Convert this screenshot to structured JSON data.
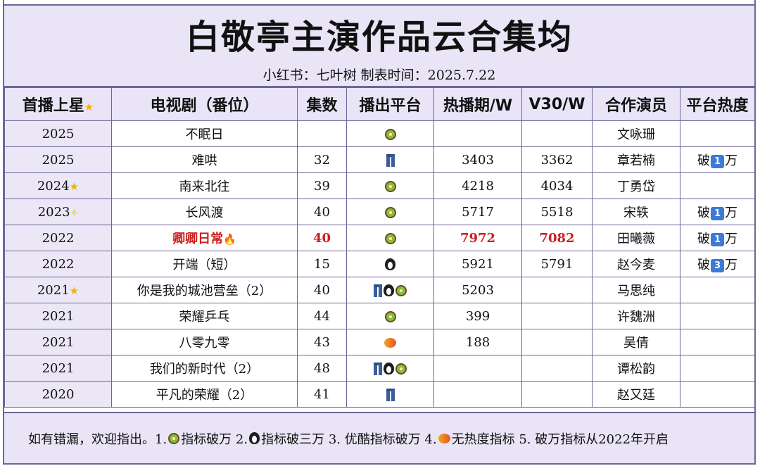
{
  "title": "白敬亭主演作品云合集均",
  "subtitle": "小红书：七叶树   制表时间：2025.7.22",
  "headers": [
    "首播上星",
    "电视剧（番位）",
    "集数",
    "播出平台",
    "热播期/W",
    "V30/W",
    "合作演员",
    "平台热度"
  ],
  "header_badge": "star-icon",
  "rows": [
    {
      "year": "2025",
      "year_badge": "",
      "drama": "不眠日",
      "episodes": "",
      "platforms": [
        "kiwi"
      ],
      "hot": "",
      "v30": "",
      "cast": "文咏珊",
      "heat_prefix": "",
      "heat_num": "",
      "heat_suffix": "",
      "highlight": false,
      "drama_badge": ""
    },
    {
      "year": "2025",
      "year_badge": "",
      "drama": "难哄",
      "episodes": "32",
      "platforms": [
        "jeans"
      ],
      "hot": "3403",
      "v30": "3362",
      "cast": "章若楠",
      "heat_prefix": "破",
      "heat_num": "1",
      "heat_suffix": "万",
      "highlight": false,
      "drama_badge": ""
    },
    {
      "year": "2024",
      "year_badge": "star",
      "drama": "南来北往",
      "episodes": "39",
      "platforms": [
        "kiwi"
      ],
      "hot": "4218",
      "v30": "4034",
      "cast": "丁勇岱",
      "heat_prefix": "",
      "heat_num": "",
      "heat_suffix": "",
      "highlight": false,
      "drama_badge": ""
    },
    {
      "year": "2023",
      "year_badge": "dizzy",
      "drama": "长风渡",
      "episodes": "40",
      "platforms": [
        "kiwi"
      ],
      "hot": "5717",
      "v30": "5518",
      "cast": "宋轶",
      "heat_prefix": "破",
      "heat_num": "1",
      "heat_suffix": "万",
      "highlight": false,
      "drama_badge": ""
    },
    {
      "year": "2022",
      "year_badge": "",
      "drama": "卿卿日常",
      "episodes": "40",
      "platforms": [
        "kiwi"
      ],
      "hot": "7972",
      "v30": "7082",
      "cast": "田曦薇",
      "heat_prefix": "破",
      "heat_num": "1",
      "heat_suffix": "万",
      "highlight": true,
      "drama_badge": "fire"
    },
    {
      "year": "2022",
      "year_badge": "",
      "drama": "开端（短）",
      "episodes": "15",
      "platforms": [
        "penguin"
      ],
      "hot": "5921",
      "v30": "5791",
      "cast": "赵今麦",
      "heat_prefix": "破",
      "heat_num": "3",
      "heat_suffix": "万",
      "highlight": false,
      "drama_badge": ""
    },
    {
      "year": "2021",
      "year_badge": "star",
      "drama": "你是我的城池营垒（2）",
      "episodes": "40",
      "platforms": [
        "jeans",
        "penguin",
        "kiwi"
      ],
      "hot": "5203",
      "v30": "",
      "cast": "马思纯",
      "heat_prefix": "",
      "heat_num": "",
      "heat_suffix": "",
      "highlight": false,
      "drama_badge": ""
    },
    {
      "year": "2021",
      "year_badge": "",
      "drama": "荣耀乒乓",
      "episodes": "44",
      "platforms": [
        "kiwi"
      ],
      "hot": "399",
      "v30": "",
      "cast": "许魏洲",
      "heat_prefix": "",
      "heat_num": "",
      "heat_suffix": "",
      "highlight": false,
      "drama_badge": ""
    },
    {
      "year": "2021",
      "year_badge": "",
      "drama": "八零九零",
      "episodes": "43",
      "platforms": [
        "mango"
      ],
      "hot": "188",
      "v30": "",
      "cast": "吴倩",
      "heat_prefix": "",
      "heat_num": "",
      "heat_suffix": "",
      "highlight": false,
      "drama_badge": ""
    },
    {
      "year": "2021",
      "year_badge": "",
      "drama": "我们的新时代（2）",
      "episodes": "48",
      "platforms": [
        "jeans",
        "penguin",
        "kiwi"
      ],
      "hot": "",
      "v30": "",
      "cast": "谭松韵",
      "heat_prefix": "",
      "heat_num": "",
      "heat_suffix": "",
      "highlight": false,
      "drama_badge": ""
    },
    {
      "year": "2020",
      "year_badge": "",
      "drama": "平凡的荣耀（2）",
      "episodes": "41",
      "platforms": [
        "jeans"
      ],
      "hot": "",
      "v30": "",
      "cast": "赵又廷",
      "heat_prefix": "",
      "heat_num": "",
      "heat_suffix": "",
      "highlight": false,
      "drama_badge": ""
    }
  ],
  "footer": {
    "t0": "如有错漏，欢迎指出。1.",
    "t1": "指标破万 2.",
    "t2": "指标破三万 3. 优酷指标破万 4.",
    "t3": "无热度指标 5. 破万指标从2022年开启"
  },
  "colors": {
    "border": "#6e6699",
    "header_bg": "#e9e4f6",
    "highlight": "#cc1f1f"
  }
}
